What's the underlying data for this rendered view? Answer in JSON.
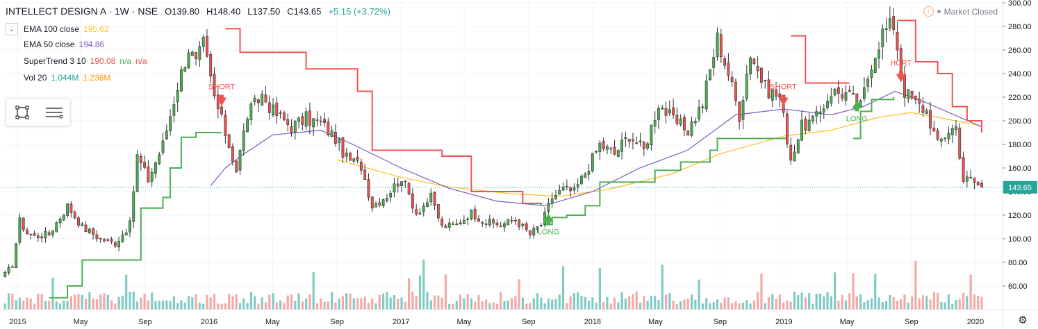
{
  "header": {
    "symbol": "INTELLECT DESIGN A · 1W · NSE",
    "open_label": "O",
    "open": "139.80",
    "high_label": "H",
    "high": "148.40",
    "low_label": "L",
    "low": "137.50",
    "close_label": "C",
    "close": "143.65",
    "change": "+5.15 (+3.72%)"
  },
  "indicators": [
    {
      "name": "EMA 100 close",
      "values": [
        "195.62"
      ],
      "colors": [
        "#f9c027"
      ]
    },
    {
      "name": "EMA 50 close",
      "values": [
        "194.86"
      ],
      "colors": [
        "#7e57c2"
      ]
    },
    {
      "name": "SuperTrend 3 10",
      "values": [
        "190.08",
        "n/a",
        "n/a"
      ],
      "colors": [
        "#ef5350",
        "#4caf50",
        "#ef5350"
      ]
    },
    {
      "name": "Vol 20",
      "values": [
        "1.044M",
        "1.236M"
      ],
      "colors": [
        "#26a69a",
        "#ff9800"
      ]
    }
  ],
  "market_status": "Market Closed",
  "last_price_label": "143.65",
  "colors": {
    "up": "#4caf50",
    "down": "#ef5350",
    "candle_border": "#2d2d2d",
    "ema100": "#f9c027",
    "ema50": "#7e57c2",
    "st_up": "#4caf50",
    "st_down": "#ef5350",
    "vol_up": "#80cbc4",
    "vol_down": "#f4a9a8",
    "grid": "#f0f3fa",
    "axis_text": "#131722",
    "last_price": "#26a69a"
  },
  "chart_data": {
    "type": "candlestick",
    "title": "INTELLECT DESIGN A · 1W · NSE",
    "ylim": [
      40,
      300
    ],
    "y_ticks": [
      60,
      80,
      100,
      120,
      140,
      160,
      180,
      200,
      220,
      240,
      260,
      280,
      300
    ],
    "y_tick_labels": [
      "60.00",
      "80.00",
      "100.00",
      "120.00",
      "140.00",
      "160.00",
      "180.00",
      "200.00",
      "220.00",
      "240.00",
      "260.00",
      "280.00",
      "300.00"
    ],
    "x_range": [
      "2014-12-01",
      "2020-01-13"
    ],
    "x_ticks": [
      {
        "date": "2015-01-01",
        "label": "2015"
      },
      {
        "date": "2015-05-01",
        "label": "May"
      },
      {
        "date": "2015-09-01",
        "label": "Sep"
      },
      {
        "date": "2016-01-01",
        "label": "2016"
      },
      {
        "date": "2016-05-01",
        "label": "May"
      },
      {
        "date": "2016-09-01",
        "label": "Sep"
      },
      {
        "date": "2017-01-01",
        "label": "2017"
      },
      {
        "date": "2017-05-01",
        "label": "May"
      },
      {
        "date": "2017-09-01",
        "label": "Sep"
      },
      {
        "date": "2018-01-01",
        "label": "2018"
      },
      {
        "date": "2018-05-01",
        "label": "May"
      },
      {
        "date": "2018-09-01",
        "label": "Sep"
      },
      {
        "date": "2019-01-01",
        "label": "2019"
      },
      {
        "date": "2019-05-01",
        "label": "May"
      },
      {
        "date": "2019-09-01",
        "label": "Sep"
      },
      {
        "date": "2020-01-01",
        "label": "2020"
      }
    ],
    "price_path": [
      [
        "2014-12-08",
        70
      ],
      [
        "2014-12-22",
        78
      ],
      [
        "2015-01-05",
        115
      ],
      [
        "2015-01-19",
        105
      ],
      [
        "2015-02-02",
        102
      ],
      [
        "2015-03-02",
        104
      ],
      [
        "2015-04-06",
        128
      ],
      [
        "2015-05-04",
        110
      ],
      [
        "2015-06-08",
        100
      ],
      [
        "2015-07-06",
        96
      ],
      [
        "2015-08-03",
        112
      ],
      [
        "2015-08-17",
        170
      ],
      [
        "2015-09-07",
        150
      ],
      [
        "2015-10-05",
        180
      ],
      [
        "2015-11-02",
        230
      ],
      [
        "2015-11-23",
        262
      ],
      [
        "2015-12-07",
        248
      ],
      [
        "2015-12-21",
        265
      ],
      [
        "2016-01-11",
        220
      ],
      [
        "2016-02-01",
        190
      ],
      [
        "2016-02-22",
        158
      ],
      [
        "2016-03-14",
        205
      ],
      [
        "2016-04-11",
        222
      ],
      [
        "2016-05-02",
        208
      ],
      [
        "2016-06-06",
        195
      ],
      [
        "2016-07-04",
        202
      ],
      [
        "2016-08-01",
        198
      ],
      [
        "2016-08-29",
        185
      ],
      [
        "2016-09-19",
        168
      ],
      [
        "2016-10-17",
        162
      ],
      [
        "2016-11-07",
        128
      ],
      [
        "2016-12-05",
        137
      ],
      [
        "2017-01-02",
        152
      ],
      [
        "2017-01-30",
        122
      ],
      [
        "2017-02-27",
        135
      ],
      [
        "2017-03-20",
        110
      ],
      [
        "2017-04-17",
        112
      ],
      [
        "2017-05-15",
        122
      ],
      [
        "2017-06-12",
        114
      ],
      [
        "2017-07-10",
        112
      ],
      [
        "2017-08-07",
        116
      ],
      [
        "2017-09-04",
        104
      ],
      [
        "2017-09-25",
        112
      ],
      [
        "2017-10-16",
        135
      ],
      [
        "2017-11-06",
        142
      ],
      [
        "2017-11-27",
        140
      ],
      [
        "2017-12-18",
        156
      ],
      [
        "2018-01-15",
        180
      ],
      [
        "2018-02-12",
        172
      ],
      [
        "2018-03-12",
        188
      ],
      [
        "2018-04-09",
        175
      ],
      [
        "2018-05-07",
        215
      ],
      [
        "2018-06-04",
        200
      ],
      [
        "2018-07-02",
        192
      ],
      [
        "2018-07-30",
        215
      ],
      [
        "2018-08-27",
        270
      ],
      [
        "2018-09-17",
        240
      ],
      [
        "2018-10-08",
        205
      ],
      [
        "2018-10-29",
        258
      ],
      [
        "2018-11-26",
        228
      ],
      [
        "2018-12-24",
        220
      ],
      [
        "2019-01-14",
        168
      ],
      [
        "2019-02-04",
        195
      ],
      [
        "2019-03-04",
        202
      ],
      [
        "2019-04-01",
        225
      ],
      [
        "2019-04-29",
        223
      ],
      [
        "2019-05-27",
        212
      ],
      [
        "2019-06-17",
        250
      ],
      [
        "2019-07-08",
        275
      ],
      [
        "2019-07-29",
        282
      ],
      [
        "2019-08-19",
        225
      ],
      [
        "2019-09-09",
        215
      ],
      [
        "2019-09-30",
        208
      ],
      [
        "2019-10-21",
        180
      ],
      [
        "2019-11-11",
        192
      ],
      [
        "2019-11-25",
        195
      ],
      [
        "2019-12-09",
        150
      ],
      [
        "2019-12-23",
        150
      ],
      [
        "2020-01-13",
        143.65
      ]
    ],
    "ema50": [
      [
        "2016-01-04",
        145
      ],
      [
        "2016-02-01",
        160
      ],
      [
        "2016-03-01",
        170
      ],
      [
        "2016-05-01",
        188
      ],
      [
        "2016-08-01",
        192
      ],
      [
        "2016-10-01",
        180
      ],
      [
        "2017-01-01",
        160
      ],
      [
        "2017-04-01",
        143
      ],
      [
        "2017-07-01",
        132
      ],
      [
        "2017-10-01",
        128
      ],
      [
        "2018-01-01",
        140
      ],
      [
        "2018-04-01",
        160
      ],
      [
        "2018-07-01",
        175
      ],
      [
        "2018-10-01",
        205
      ],
      [
        "2019-01-01",
        210
      ],
      [
        "2019-04-01",
        205
      ],
      [
        "2019-06-01",
        212
      ],
      [
        "2019-08-01",
        225
      ],
      [
        "2019-10-01",
        215
      ],
      [
        "2020-01-13",
        194.86
      ]
    ],
    "ema100": [
      [
        "2016-09-01",
        167
      ],
      [
        "2017-01-01",
        152
      ],
      [
        "2017-04-01",
        144
      ],
      [
        "2017-08-01",
        138
      ],
      [
        "2017-11-01",
        136
      ],
      [
        "2018-02-01",
        142
      ],
      [
        "2018-06-01",
        155
      ],
      [
        "2018-09-01",
        172
      ],
      [
        "2019-01-01",
        187
      ],
      [
        "2019-04-01",
        192
      ],
      [
        "2019-07-01",
        203
      ],
      [
        "2019-09-01",
        207
      ],
      [
        "2019-11-01",
        202
      ],
      [
        "2020-01-13",
        195.62
      ]
    ],
    "supertrend": [
      {
        "trend": "up",
        "points": [
          [
            "2015-03-02",
            50
          ],
          [
            "2015-04-06",
            60
          ],
          [
            "2015-05-04",
            82
          ],
          [
            "2015-08-03",
            82
          ],
          [
            "2015-08-24",
            126
          ],
          [
            "2015-10-05",
            135
          ],
          [
            "2015-10-19",
            160
          ],
          [
            "2015-11-09",
            186
          ],
          [
            "2015-12-07",
            190
          ],
          [
            "2016-01-25",
            190
          ]
        ]
      },
      {
        "trend": "down",
        "points": [
          [
            "2016-02-01",
            278
          ],
          [
            "2016-02-29",
            258
          ],
          [
            "2016-06-27",
            258
          ],
          [
            "2016-07-04",
            244
          ],
          [
            "2016-09-12",
            244
          ],
          [
            "2016-10-10",
            225
          ],
          [
            "2016-11-07",
            175
          ],
          [
            "2017-03-20",
            170
          ],
          [
            "2017-05-15",
            140
          ],
          [
            "2017-08-21",
            130
          ],
          [
            "2017-09-25",
            128
          ]
        ]
      },
      {
        "trend": "up",
        "points": [
          [
            "2017-10-02",
            112
          ],
          [
            "2017-10-16",
            118
          ],
          [
            "2017-11-13",
            120
          ],
          [
            "2017-12-18",
            128
          ],
          [
            "2018-01-15",
            148
          ],
          [
            "2018-03-05",
            148
          ],
          [
            "2018-04-30",
            158
          ],
          [
            "2018-06-18",
            165
          ],
          [
            "2018-08-13",
            175
          ],
          [
            "2018-08-27",
            185
          ],
          [
            "2019-01-07",
            185
          ]
        ]
      },
      {
        "trend": "down",
        "points": [
          [
            "2019-01-14",
            272
          ],
          [
            "2019-02-11",
            232
          ],
          [
            "2019-05-06",
            232
          ]
        ]
      },
      {
        "trend": "up",
        "points": [
          [
            "2019-05-13",
            185
          ],
          [
            "2019-05-27",
            208
          ],
          [
            "2019-06-17",
            218
          ],
          [
            "2019-07-29",
            220
          ]
        ]
      },
      {
        "trend": "down",
        "points": [
          [
            "2019-08-05",
            285
          ],
          [
            "2019-09-09",
            250
          ],
          [
            "2019-10-21",
            240
          ],
          [
            "2019-11-18",
            212
          ],
          [
            "2019-12-16",
            200
          ],
          [
            "2020-01-13",
            190.08
          ]
        ]
      }
    ],
    "signals": [
      {
        "type": "SHORT",
        "date": "2016-01-25",
        "price": 222,
        "label": "SHORT"
      },
      {
        "type": "LONG",
        "date": "2017-10-09",
        "price": 112,
        "label": "LONG"
      },
      {
        "type": "SHORT",
        "date": "2018-12-31",
        "price": 222,
        "label": "SHORT"
      },
      {
        "type": "LONG",
        "date": "2019-05-20",
        "price": 208,
        "label": "LONG"
      },
      {
        "type": "SHORT",
        "date": "2019-08-12",
        "price": 242,
        "label": "HORT"
      }
    ],
    "volume_scale_max": 10
  }
}
